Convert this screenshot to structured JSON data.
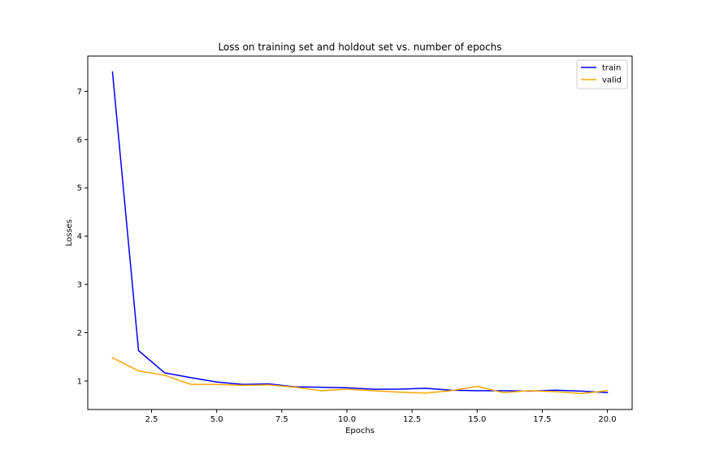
{
  "chart_data": {
    "type": "line",
    "title": "Loss on training set and holdout set vs. number of epochs",
    "xlabel": "Epochs",
    "ylabel": "Losses",
    "x": [
      1,
      2,
      3,
      4,
      5,
      6,
      7,
      8,
      9,
      10,
      11,
      12,
      13,
      14,
      15,
      16,
      17,
      18,
      19,
      20
    ],
    "series": [
      {
        "name": "train",
        "color": "#0000ff",
        "values": [
          7.4,
          1.63,
          1.17,
          1.07,
          0.98,
          0.93,
          0.94,
          0.88,
          0.87,
          0.86,
          0.83,
          0.83,
          0.85,
          0.81,
          0.8,
          0.8,
          0.79,
          0.81,
          0.79,
          0.76
        ]
      },
      {
        "name": "valid",
        "color": "#ffa500",
        "values": [
          1.48,
          1.21,
          1.12,
          0.93,
          0.93,
          0.91,
          0.92,
          0.87,
          0.8,
          0.83,
          0.8,
          0.77,
          0.75,
          0.8,
          0.89,
          0.76,
          0.8,
          0.78,
          0.74,
          0.8
        ]
      }
    ],
    "xticks": [
      "2.5",
      "5.0",
      "7.5",
      "10.0",
      "12.5",
      "15.0",
      "17.5",
      "20.0"
    ],
    "yticks": [
      "1",
      "2",
      "3",
      "4",
      "5",
      "6",
      "7"
    ],
    "xlim": [
      0.05,
      20.95
    ],
    "ylim": [
      0.41,
      7.73
    ],
    "grid": false,
    "legend": "top-right"
  }
}
